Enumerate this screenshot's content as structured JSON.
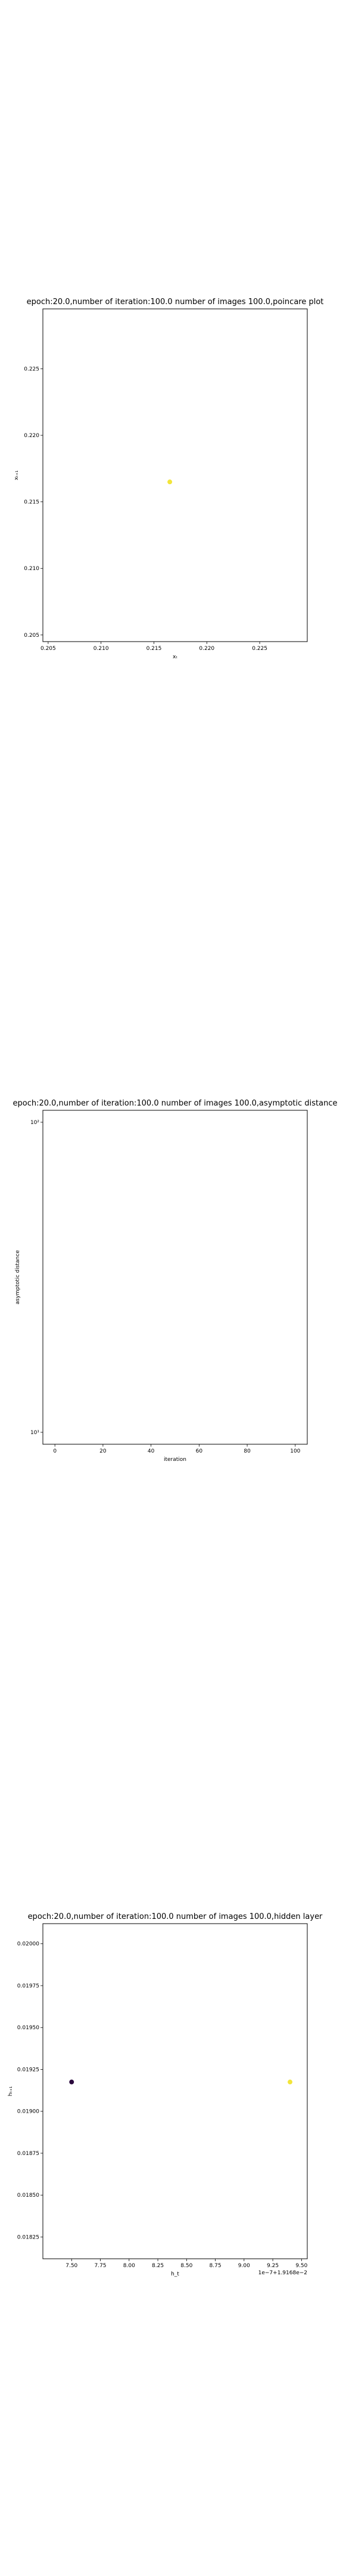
{
  "chart_data": [
    {
      "type": "scatter",
      "title": "epoch:20.0,number of iteration:100.0  number of images 100.0,poincare plot",
      "xlabel": "xₜ",
      "ylabel": "xₜ₊₁",
      "xlim": [
        0.2045,
        0.2295
      ],
      "ylim": [
        0.2045,
        0.2295
      ],
      "xticks": [
        0.205,
        0.21,
        0.215,
        0.22,
        0.225
      ],
      "yticks": [
        0.205,
        0.21,
        0.215,
        0.22,
        0.225
      ],
      "xtick_labels": [
        "0.205",
        "0.210",
        "0.215",
        "0.220",
        "0.225"
      ],
      "ytick_labels": [
        "0.205",
        "0.210",
        "0.215",
        "0.220",
        "0.225"
      ],
      "points": [
        {
          "x": 0.2165,
          "y": 0.2165,
          "color": "#f2e53a"
        }
      ],
      "grid": false
    },
    {
      "type": "line",
      "title": "epoch:20.0,number of iteration:100.0  number of images 100.0,asymptotic distance",
      "xlabel": "iteration",
      "ylabel": "asymptotic distance",
      "xlim": [
        -5,
        105
      ],
      "yscale": "log",
      "xticks": [
        0,
        20,
        40,
        60,
        80,
        100
      ],
      "xtick_labels": [
        "0",
        "20",
        "40",
        "60",
        "80",
        "100"
      ],
      "yticks": [
        "top",
        "bottom"
      ],
      "ytick_labels": [
        "10²",
        "10¹"
      ],
      "series": [],
      "grid": false
    },
    {
      "type": "scatter",
      "title": "epoch:20.0,number of iteration:100.0  number of images 100.0,hidden layer",
      "xlabel": "h_t",
      "ylabel": "hₜ₊₁",
      "xlim": [
        7.25,
        9.55
      ],
      "ylim": [
        0.01812,
        0.02012
      ],
      "xticks": [
        7.5,
        7.75,
        8.0,
        8.25,
        8.5,
        8.75,
        9.0,
        9.25,
        9.5
      ],
      "xtick_labels": [
        "7.50",
        "7.75",
        "8.00",
        "8.25",
        "8.50",
        "8.75",
        "9.00",
        "9.25",
        "9.50"
      ],
      "yticks": [
        0.01825,
        0.0185,
        0.01875,
        0.019,
        0.01925,
        0.0195,
        0.01975,
        0.02
      ],
      "ytick_labels": [
        "0.01825",
        "0.01850",
        "0.01875",
        "0.01900",
        "0.01925",
        "0.01950",
        "0.01975",
        "0.02000"
      ],
      "x_offset_text": "1e−7+1.9168e−2",
      "points": [
        {
          "x": 7.5,
          "y": 0.019175,
          "color": "#2b0a3d"
        },
        {
          "x": 9.4,
          "y": 0.019175,
          "color": "#f2e53a"
        }
      ],
      "grid": false
    }
  ]
}
